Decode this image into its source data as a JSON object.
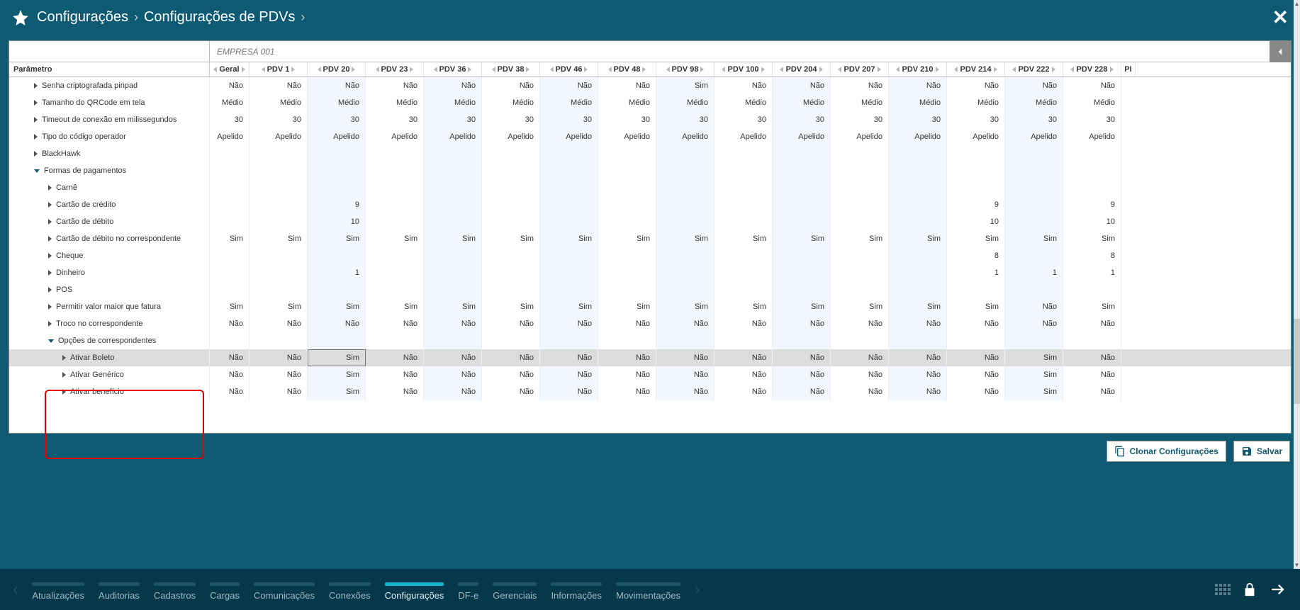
{
  "header": {
    "breadcrumb1": "Configurações",
    "breadcrumb2": "Configurações de PDVs"
  },
  "company": "EMPRESA 001",
  "columns": {
    "param": "Parâmetro",
    "geral": "Geral",
    "pdvs": [
      "PDV 1",
      "PDV 20",
      "PDV 23",
      "PDV 36",
      "PDV 38",
      "PDV 46",
      "PDV 48",
      "PDV 98",
      "PDV 100",
      "PDV 204",
      "PDV 207",
      "PDV 210",
      "PDV 214",
      "PDV 222",
      "PDV 228"
    ],
    "tail": "PI"
  },
  "rows": [
    {
      "label": "Senha criptografada pinpad",
      "indent": 0,
      "caret": "right",
      "geral": "Não",
      "vals": [
        "Não",
        "Não",
        "Não",
        "Não",
        "Não",
        "Não",
        "Não",
        "Sim",
        "Não",
        "Não",
        "Não",
        "Não",
        "Não",
        "Não",
        "Não"
      ]
    },
    {
      "label": "Tamanho do QRCode em tela",
      "indent": 0,
      "caret": "right",
      "geral": "Médio",
      "vals": [
        "Médio",
        "Médio",
        "Médio",
        "Médio",
        "Médio",
        "Médio",
        "Médio",
        "Médio",
        "Médio",
        "Médio",
        "Médio",
        "Médio",
        "Médio",
        "Médio",
        "Médio"
      ]
    },
    {
      "label": "Timeout de conexão em milissegundos",
      "indent": 0,
      "caret": "right",
      "geral": "30",
      "vals": [
        "30",
        "30",
        "30",
        "30",
        "30",
        "30",
        "30",
        "30",
        "30",
        "30",
        "30",
        "30",
        "30",
        "30",
        "30"
      ]
    },
    {
      "label": "Tipo do código operador",
      "indent": 0,
      "caret": "right",
      "geral": "Apelido",
      "vals": [
        "Apelido",
        "Apelido",
        "Apelido",
        "Apelido",
        "Apelido",
        "Apelido",
        "Apelido",
        "Apelido",
        "Apelido",
        "Apelido",
        "Apelido",
        "Apelido",
        "Apelido",
        "Apelido",
        "Apelido"
      ]
    },
    {
      "label": "BlackHawk",
      "indent": 0,
      "caret": "right",
      "geral": "",
      "vals": [
        "",
        "",
        "",
        "",
        "",
        "",
        "",
        "",
        "",
        "",
        "",
        "",
        "",
        "",
        ""
      ]
    },
    {
      "label": "Formas de pagamentos",
      "indent": 0,
      "caret": "down",
      "geral": "",
      "vals": [
        "",
        "",
        "",
        "",
        "",
        "",
        "",
        "",
        "",
        "",
        "",
        "",
        "",
        "",
        ""
      ]
    },
    {
      "label": "Carnê",
      "indent": 1,
      "caret": "right",
      "geral": "",
      "vals": [
        "",
        "",
        "",
        "",
        "",
        "",
        "",
        "",
        "",
        "",
        "",
        "",
        "",
        "",
        ""
      ]
    },
    {
      "label": "Cartão de crédito",
      "indent": 1,
      "caret": "right",
      "geral": "",
      "vals": [
        "",
        "9",
        "",
        "",
        "",
        "",
        "",
        "",
        "",
        "",
        "",
        "",
        "9",
        "",
        "9"
      ]
    },
    {
      "label": "Cartão de débito",
      "indent": 1,
      "caret": "right",
      "geral": "",
      "vals": [
        "",
        "10",
        "",
        "",
        "",
        "",
        "",
        "",
        "",
        "",
        "",
        "",
        "10",
        "",
        "10"
      ]
    },
    {
      "label": "Cartão de débito no correspondente",
      "indent": 1,
      "caret": "right",
      "geral": "Sim",
      "vals": [
        "Sim",
        "Sim",
        "Sim",
        "Sim",
        "Sim",
        "Sim",
        "Sim",
        "Sim",
        "Sim",
        "Sim",
        "Sim",
        "Sim",
        "Sim",
        "Sim",
        "Sim"
      ]
    },
    {
      "label": "Cheque",
      "indent": 1,
      "caret": "right",
      "geral": "",
      "vals": [
        "",
        "",
        "",
        "",
        "",
        "",
        "",
        "",
        "",
        "",
        "",
        "",
        "8",
        "",
        "8"
      ]
    },
    {
      "label": "Dinheiro",
      "indent": 1,
      "caret": "right",
      "geral": "",
      "vals": [
        "",
        "1",
        "",
        "",
        "",
        "",
        "",
        "",
        "",
        "",
        "",
        "",
        "1",
        "1",
        "1"
      ]
    },
    {
      "label": "POS",
      "indent": 1,
      "caret": "right",
      "geral": "",
      "vals": [
        "",
        "",
        "",
        "",
        "",
        "",
        "",
        "",
        "",
        "",
        "",
        "",
        "",
        "",
        ""
      ]
    },
    {
      "label": "Permitir valor maior que fatura",
      "indent": 1,
      "caret": "right",
      "geral": "Sim",
      "vals": [
        "Sim",
        "Sim",
        "Sim",
        "Sim",
        "Sim",
        "Sim",
        "Sim",
        "Sim",
        "Sim",
        "Sim",
        "Sim",
        "Sim",
        "Sim",
        "Não",
        "Sim"
      ]
    },
    {
      "label": "Troco no correspondente",
      "indent": 1,
      "caret": "right",
      "geral": "Não",
      "vals": [
        "Não",
        "Não",
        "Não",
        "Não",
        "Não",
        "Não",
        "Não",
        "Não",
        "Não",
        "Não",
        "Não",
        "Não",
        "Não",
        "Não",
        "Não"
      ]
    },
    {
      "label": "Opções de correspondentes",
      "indent": 1,
      "caret": "down",
      "geral": "",
      "vals": [
        "",
        "",
        "",
        "",
        "",
        "",
        "",
        "",
        "",
        "",
        "",
        "",
        "",
        "",
        ""
      ]
    },
    {
      "label": "Ativar Boleto",
      "indent": 2,
      "caret": "right",
      "geral": "Não",
      "vals": [
        "Não",
        "Sim",
        "Não",
        "Não",
        "Não",
        "Não",
        "Não",
        "Não",
        "Não",
        "Não",
        "Não",
        "Não",
        "Não",
        "Sim",
        "Não"
      ],
      "selected": true,
      "editCol": 1
    },
    {
      "label": "Ativar Genérico",
      "indent": 2,
      "caret": "right",
      "geral": "Não",
      "vals": [
        "Não",
        "Sim",
        "Não",
        "Não",
        "Não",
        "Não",
        "Não",
        "Não",
        "Não",
        "Não",
        "Não",
        "Não",
        "Não",
        "Sim",
        "Não"
      ]
    },
    {
      "label": "Ativar benefício",
      "indent": 2,
      "caret": "right",
      "geral": "Não",
      "vals": [
        "Não",
        "Sim",
        "Não",
        "Não",
        "Não",
        "Não",
        "Não",
        "Não",
        "Não",
        "Não",
        "Não",
        "Não",
        "Não",
        "Sim",
        "Não"
      ]
    }
  ],
  "buttons": {
    "clone": "Clonar Configurações",
    "save": "Salvar"
  },
  "footer": {
    "tabs": [
      {
        "label": "Atualizações",
        "active": false
      },
      {
        "label": "Auditorias",
        "active": false
      },
      {
        "label": "Cadastros",
        "active": false
      },
      {
        "label": "Cargas",
        "active": false
      },
      {
        "label": "Comunicações",
        "active": false
      },
      {
        "label": "Conexões",
        "active": false
      },
      {
        "label": "Configurações",
        "active": true
      },
      {
        "label": "DF-e",
        "active": false
      },
      {
        "label": "Gerenciais",
        "active": false
      },
      {
        "label": "Informações",
        "active": false
      },
      {
        "label": "Movimentações",
        "active": false
      }
    ]
  },
  "colors": {
    "bgMain": "#0e5a72",
    "footerBg": "#04384a",
    "activeTab": "#15b3cc",
    "highlight": "#e30000"
  },
  "altColumnIndexes": [
    1,
    3,
    5,
    7,
    9,
    11,
    13
  ]
}
